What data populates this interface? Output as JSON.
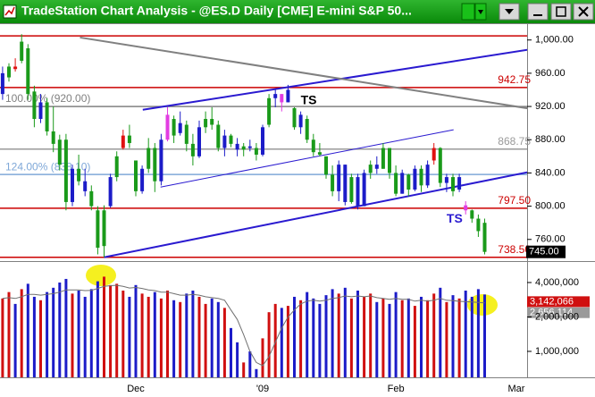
{
  "window": {
    "title": "TradeStation Chart Analysis - @ES.D   Daily   [CME] E-mini S&P 50..."
  },
  "chart_data": [
    {
      "type": "candlestick",
      "ylim": [
        735,
        1018
      ],
      "yticks": [
        {
          "value": 1000,
          "label": "1,000.00"
        },
        {
          "value": 960,
          "label": "960.00"
        },
        {
          "value": 920,
          "label": "920.00"
        },
        {
          "value": 880,
          "label": "880.00"
        },
        {
          "value": 840,
          "label": "840.00"
        },
        {
          "value": 800,
          "label": "800.00"
        },
        {
          "value": 760,
          "label": "760.00"
        }
      ],
      "open": [
        935,
        955,
        968,
        975,
        990,
        938,
        905,
        925,
        890,
        880,
        880,
        805,
        845,
        830,
        818,
        795,
        752,
        800,
        835,
        870,
        885,
        855,
        818,
        845,
        870,
        830,
        880,
        905,
        888,
        898,
        875,
        860,
        895,
        905,
        898,
        870,
        885,
        875,
        868,
        872,
        870,
        862,
        898,
        930,
        935,
        925,
        918,
        895,
        905,
        880,
        865,
        860,
        838,
        818,
        850,
        805,
        835,
        800,
        840,
        850,
        845,
        870,
        840,
        815,
        838,
        820,
        845,
        825,
        855,
        870,
        828,
        835,
        820,
        801,
        795,
        785,
        780,
        null,
        null,
        null,
        null,
        null,
        null
      ],
      "high": [
        968,
        972,
        978,
        1007,
        995,
        945,
        935,
        930,
        920,
        886,
        887,
        850,
        862,
        845,
        825,
        800,
        801,
        839,
        866,
        892,
        898,
        855,
        849,
        882,
        876,
        887,
        919,
        909,
        914,
        903,
        887,
        903,
        914,
        919,
        903,
        892,
        887,
        882,
        876,
        880,
        876,
        898,
        935,
        941,
        935,
        946,
        919,
        914,
        909,
        887,
        876,
        860,
        849,
        855,
        850,
        839,
        839,
        844,
        855,
        860,
        876,
        870,
        849,
        844,
        839,
        849,
        849,
        855,
        876,
        871,
        839,
        839,
        839,
        806,
        796,
        790,
        785,
        null,
        null,
        null,
        null,
        null,
        null
      ],
      "low": [
        928,
        950,
        962,
        972,
        928,
        895,
        900,
        885,
        865,
        843,
        795,
        800,
        825,
        812,
        795,
        742,
        738.5,
        798,
        830,
        868,
        870,
        812,
        815,
        840,
        817,
        825,
        878,
        876,
        885,
        866,
        849,
        858,
        888,
        892,
        866,
        860,
        871,
        860,
        860,
        866,
        855,
        860,
        895,
        919,
        914,
        925,
        892,
        887,
        876,
        860,
        860,
        833,
        812,
        806,
        801,
        803,
        796,
        800,
        833,
        839,
        845,
        833,
        812,
        815,
        812,
        818,
        817,
        822,
        850,
        823,
        817,
        812,
        817,
        790,
        780,
        763,
        742,
        null,
        null,
        null,
        null,
        null,
        null
      ],
      "close": [
        960,
        968,
        965,
        998,
        935,
        905,
        925,
        890,
        875,
        850,
        805,
        845,
        830,
        818,
        800,
        750,
        795,
        835,
        860,
        885,
        876,
        818,
        845,
        870,
        830,
        880,
        910,
        885,
        900,
        875,
        860,
        895,
        905,
        898,
        870,
        885,
        875,
        868,
        872,
        870,
        862,
        895,
        930,
        935,
        925,
        940,
        895,
        910,
        880,
        865,
        862,
        838,
        818,
        850,
        805,
        835,
        800,
        840,
        850,
        845,
        870,
        840,
        815,
        840,
        820,
        845,
        825,
        850,
        870,
        828,
        835,
        818,
        835,
        795,
        785,
        770,
        745,
        null,
        null,
        null,
        null,
        null,
        null
      ],
      "close_labels": [
        null,
        null,
        null,
        null,
        null,
        null,
        null,
        null,
        null,
        null,
        null,
        null,
        null,
        null,
        null,
        null,
        null,
        null,
        null,
        null,
        null,
        null,
        null,
        null,
        null,
        null,
        null,
        null,
        null,
        null,
        null,
        null,
        null,
        null,
        null,
        null,
        null,
        null,
        null,
        null,
        null,
        null,
        null,
        null,
        null,
        null,
        null,
        null,
        null,
        null,
        null,
        null,
        null,
        null,
        null,
        null,
        null,
        null,
        null,
        null,
        null,
        null,
        null,
        null,
        null,
        null,
        null,
        null,
        null,
        null,
        null,
        null,
        null,
        null,
        null,
        null,
        "745.00",
        null,
        null,
        null,
        null,
        null,
        null
      ],
      "last_box_color": "#000000",
      "colors": [
        "#1c1cc8",
        "#1a9a1a",
        "#e01010",
        "#1a9a1a",
        "#1a9a1a",
        "#1a9a1a",
        "#1c1cc8",
        "#1a9a1a",
        "#1a9a1a",
        "#1a9a1a",
        "#1a9a1a",
        "#1c1cc8",
        "#1a9a1a",
        "#1c1cc8",
        "#1a9a1a",
        "#1a9a1a",
        "#1a9a1a",
        "#1c1cc8",
        "#1a9a1a",
        "#e01010",
        "#1a9a1a",
        "#1a9a1a",
        "#1c1cc8",
        "#1a9a1a",
        "#1a9a1a",
        "#1c1cc8",
        "#e23ce2",
        "#1a9a1a",
        "#1c1cc8",
        "#1a9a1a",
        "#1a9a1a",
        "#1c1cc8",
        "#1a9a1a",
        "#1a9a1a",
        "#1a9a1a",
        "#1c1cc8",
        "#1a9a1a",
        "#1c1cc8",
        "#1a9a1a",
        "#1c1cc8",
        "#1a9a1a",
        "#1c1cc8",
        "#1a9a1a",
        "#1c1cc8",
        "#e23ce2",
        "#1c1cc8",
        "#1a9a1a",
        "#1c1cc8",
        "#1a9a1a",
        "#1a9a1a",
        "#1a9a1a",
        "#1a9a1a",
        "#1a9a1a",
        "#1c1cc8",
        "#1c1cc8",
        "#1a9a1a",
        "#1c1cc8",
        "#1c1cc8",
        "#1a9a1a",
        "#1c1cc8",
        "#1a9a1a",
        "#1a9a1a",
        "#1a9a1a",
        "#1c1cc8",
        "#1a9a1a",
        "#1c1cc8",
        "#1a9a1a",
        "#1c1cc8",
        "#e01010",
        "#1a9a1a",
        "#1c1cc8",
        "#1a9a1a",
        "#1c1cc8",
        "#e23ce2",
        "#1a9a1a",
        "#1a9a1a",
        "#1a9a1a",
        null,
        null,
        null,
        null,
        null,
        null
      ],
      "levels": [
        {
          "value": 1005,
          "color": "#cc0000"
        },
        {
          "value": 942.75,
          "label": "942.75",
          "color": "#cc0000",
          "align": "right"
        },
        {
          "value": 920,
          "label": "100.00% (920.00)",
          "color": "#808080",
          "align": "left"
        },
        {
          "value": 868.75,
          "label": "868.75",
          "color": "#9a9a9a",
          "align": "right"
        },
        {
          "value": 838.1,
          "label": "124.00% (838.10)",
          "color": "#7fa8d8",
          "align": "left"
        },
        {
          "value": 797.5,
          "label": "797.50",
          "color": "#cc0000",
          "align": "right"
        },
        {
          "value": 738.5,
          "label": "738.50",
          "color": "#cc0000",
          "align": "right"
        }
      ],
      "trendlines": [
        {
          "x": [
            16,
            83.5
          ],
          "y": [
            738.5,
            842
          ],
          "color": "#2a1ad0",
          "width": 2
        },
        {
          "x": [
            22.1,
            83.4
          ],
          "y": [
            916,
            989
          ],
          "color": "#2a1ad0",
          "width": 2
        },
        {
          "x": [
            12.2,
            83.4
          ],
          "y": [
            1003,
            917
          ],
          "color": "#808080",
          "width": 2
        },
        {
          "x": [
            24.9,
            71.1
          ],
          "y": [
            823,
            892
          ],
          "color": "#2a1ad0",
          "width": 1
        }
      ],
      "annotations": [
        {
          "text": "TS",
          "x": 47,
          "y": 927,
          "color": "#000000"
        },
        {
          "text": "TS",
          "x": 70,
          "y": 784,
          "color": "#2a1ad0"
        }
      ]
    },
    {
      "type": "bar",
      "log_scale": true,
      "ylim": [
        593000,
        5940000
      ],
      "yticks": [
        {
          "value": 1000000,
          "label": "1,000,000"
        },
        {
          "value": 2000000,
          "label": "2,000,000"
        },
        {
          "value": 4000000,
          "label": "4,000,000"
        }
      ],
      "up_color": "#d01010",
      "down_color": "#1c1cc8",
      "categories": [
        null,
        null,
        null,
        null,
        null,
        null,
        null,
        null,
        null,
        null,
        null,
        null,
        null,
        null,
        null,
        null,
        null,
        null,
        null,
        null,
        null,
        "Dec",
        null,
        null,
        null,
        null,
        null,
        null,
        null,
        null,
        null,
        null,
        null,
        null,
        null,
        null,
        null,
        null,
        null,
        null,
        null,
        "'09",
        null,
        null,
        null,
        null,
        null,
        null,
        null,
        null,
        null,
        null,
        null,
        null,
        null,
        null,
        null,
        null,
        null,
        null,
        null,
        null,
        "Feb",
        null,
        null,
        null,
        null,
        null,
        null,
        null,
        null,
        null,
        null,
        null,
        null,
        null,
        null,
        null,
        null,
        null,
        null,
        "Mar",
        null
      ],
      "series": [
        {
          "color": "#d01010",
          "values": [
            2900000,
            3300000,
            2600000,
            3500000,
            3900000,
            3000000,
            2800000,
            3300000,
            3600000,
            4000000,
            4300000,
            3200000,
            3400000,
            3000000,
            3500000,
            4100000,
            4500000,
            3800000,
            3900000,
            3400000,
            3000000,
            3800000,
            3200000,
            3000000,
            3300000,
            2900000,
            3400000,
            2800000,
            2700000,
            3200000,
            3400000,
            3000000,
            2600000,
            2900000,
            2700000,
            2400000,
            1600000,
            1200000,
            800000,
            1000000,
            700000,
            1300000,
            2200000,
            2600000,
            2400000,
            2500000,
            3000000,
            2800000,
            3300000,
            2900000,
            2600000,
            3100000,
            3500000,
            3200000,
            3600000,
            2900000,
            3400000,
            3000000,
            3200000,
            2700000,
            2900000,
            2600000,
            3300000,
            2800000,
            2900000,
            2500000,
            3000000,
            2800000,
            3200000,
            3600000,
            2700000,
            3100000,
            2900000,
            3400000,
            3000000,
            3500000,
            3142066,
            null,
            null,
            null,
            null,
            null,
            null
          ],
          "value_labels": [
            null,
            null,
            null,
            null,
            null,
            null,
            null,
            null,
            null,
            null,
            null,
            null,
            null,
            null,
            null,
            null,
            null,
            null,
            null,
            null,
            null,
            null,
            null,
            null,
            null,
            null,
            null,
            null,
            null,
            null,
            null,
            null,
            null,
            null,
            null,
            null,
            null,
            null,
            null,
            null,
            null,
            null,
            null,
            null,
            null,
            null,
            null,
            null,
            null,
            null,
            null,
            null,
            null,
            null,
            null,
            null,
            null,
            null,
            null,
            null,
            null,
            null,
            null,
            null,
            null,
            null,
            null,
            null,
            null,
            null,
            null,
            null,
            null,
            null,
            null,
            null,
            "3,142,066",
            null,
            null,
            null,
            null,
            null,
            null
          ]
        },
        {
          "type": "line",
          "color": "#707070",
          "box_color": "#9a9a9a",
          "values": [
            2900000,
            2950000,
            2900000,
            3000000,
            3150000,
            3150000,
            3100000,
            3150000,
            3200000,
            3300000,
            3450000,
            3450000,
            3450000,
            3400000,
            3420000,
            3550000,
            3700000,
            3750000,
            3780000,
            3700000,
            3580000,
            3620000,
            3550000,
            3450000,
            3400000,
            3300000,
            3300000,
            3200000,
            3100000,
            3100000,
            3150000,
            3100000,
            3000000,
            2950000,
            2900000,
            2800000,
            2300000,
            1900000,
            1400000,
            1000000,
            800000,
            750000,
            900000,
            1200000,
            1600000,
            2000000,
            2300000,
            2600000,
            2750000,
            2800000,
            2750000,
            2800000,
            2900000,
            2950000,
            3050000,
            3000000,
            3050000,
            3000000,
            3050000,
            2950000,
            2900000,
            2850000,
            2900000,
            2850000,
            2850000,
            2750000,
            2800000,
            2750000,
            2800000,
            2900000,
            2800000,
            2780000,
            2740000,
            2720000,
            2700000,
            2680000,
            2656114,
            null,
            null,
            null,
            null,
            null,
            null
          ],
          "value_labels": [
            null,
            null,
            null,
            null,
            null,
            null,
            null,
            null,
            null,
            null,
            null,
            null,
            null,
            null,
            null,
            null,
            null,
            null,
            null,
            null,
            null,
            null,
            null,
            null,
            null,
            null,
            null,
            null,
            null,
            null,
            null,
            null,
            null,
            null,
            null,
            null,
            null,
            null,
            null,
            null,
            null,
            null,
            null,
            null,
            null,
            null,
            null,
            null,
            null,
            null,
            null,
            null,
            null,
            null,
            null,
            null,
            null,
            null,
            null,
            null,
            null,
            null,
            null,
            null,
            null,
            null,
            null,
            null,
            null,
            null,
            null,
            null,
            null,
            null,
            null,
            null,
            "2,656,114",
            null,
            null,
            null,
            null,
            null,
            null
          ]
        }
      ]
    }
  ]
}
